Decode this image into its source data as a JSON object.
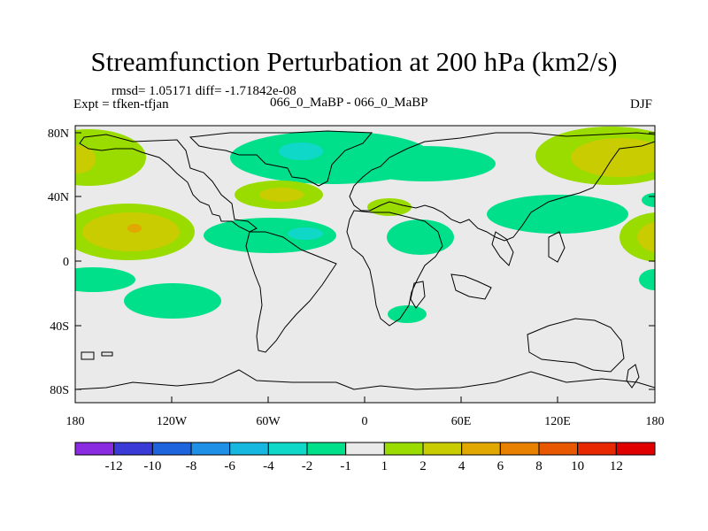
{
  "title": "Streamfunction Perturbation at 200 hPa (km2/s)",
  "stats_text": "rmsd= 1.05171  diff= -1.71842e-08",
  "experiment_text": "Expt = tfken-tfjan",
  "case_text": "066_0_MaBP - 066_0_MaBP",
  "season_text": "DJF",
  "lat_labels": [
    "80N",
    "40N",
    "0",
    "40S",
    "80S"
  ],
  "lon_labels": [
    "180",
    "120W",
    "60W",
    "0",
    "60E",
    "120E",
    "180"
  ],
  "colorbar": {
    "labels": [
      "-12",
      "-10",
      "-8",
      "-6",
      "-4",
      "-2",
      "-1",
      "1",
      "2",
      "4",
      "6",
      "8",
      "10",
      "12"
    ],
    "colors": [
      "#8a2be2",
      "#3a3ad6",
      "#1e64dc",
      "#1e90e6",
      "#17b8e0",
      "#10d8c8",
      "#00e08a",
      "#eaeaea",
      "#9adc00",
      "#c8cc00",
      "#e0a800",
      "#e88000",
      "#e85800",
      "#e82800",
      "#e00000"
    ]
  },
  "palette": {
    "land_outline": "#000000",
    "background": "#eaeaea",
    "frame": "#000000"
  }
}
